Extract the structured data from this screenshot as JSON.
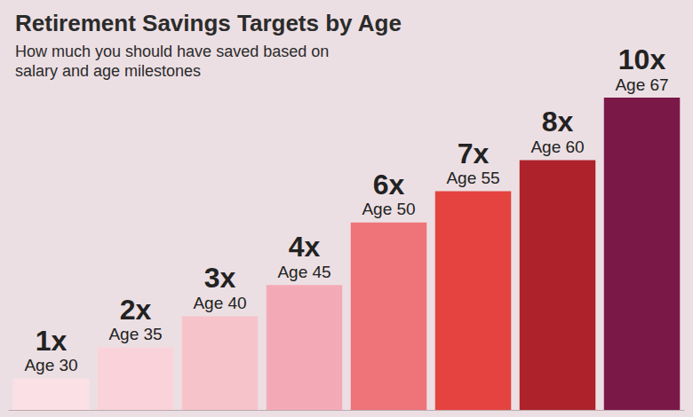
{
  "chart_data": {
    "type": "bar",
    "title": "Retirement Savings Targets by Age",
    "subtitle": "How much you should have saved based on salary and age milestones",
    "categories": [
      "Age 30",
      "Age 35",
      "Age 40",
      "Age 45",
      "Age 50",
      "Age 55",
      "Age 60",
      "Age 67"
    ],
    "values": [
      1,
      2,
      3,
      4,
      6,
      7,
      8,
      10
    ],
    "value_labels": [
      "1x",
      "2x",
      "3x",
      "4x",
      "6x",
      "7x",
      "8x",
      "10x"
    ],
    "colors": [
      "#fbe1e5",
      "#f9d3d9",
      "#f7c3cb",
      "#f4aab6",
      "#ee7479",
      "#e5433f",
      "#ad222b",
      "#7a1848"
    ],
    "ylim": [
      0,
      10
    ],
    "data_labels": true,
    "tick_labels": false,
    "grid": false
  }
}
